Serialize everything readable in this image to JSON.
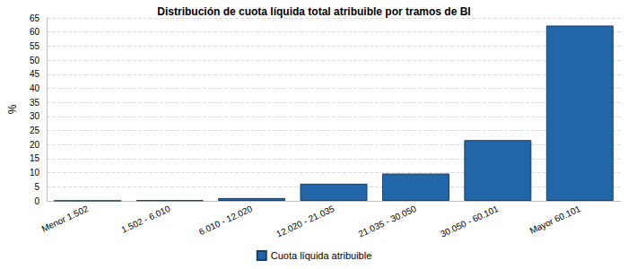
{
  "chart_data": {
    "type": "bar",
    "title": "Distribución de cuota líquida total atribuible por tramos de BI",
    "y_label": "%",
    "categories": [
      "Menor 1.502",
      "1.502 - 6.010",
      "6.010 - 12.020",
      "12.020 - 21.035",
      "21.035 - 30.050",
      "30.050 - 60.101",
      "Mayor 60.101"
    ],
    "series": [
      {
        "name": "Cuota líquida atribuible",
        "color": "#2166a8",
        "values": [
          0.05,
          0.2,
          1.0,
          6.1,
          9.7,
          21.6,
          62.3
        ]
      }
    ],
    "ylim": [
      0,
      65
    ],
    "yticks": [
      0,
      5,
      10,
      15,
      20,
      25,
      30,
      35,
      40,
      45,
      50,
      55,
      60,
      65
    ],
    "grid": true,
    "legend": "bottom"
  }
}
